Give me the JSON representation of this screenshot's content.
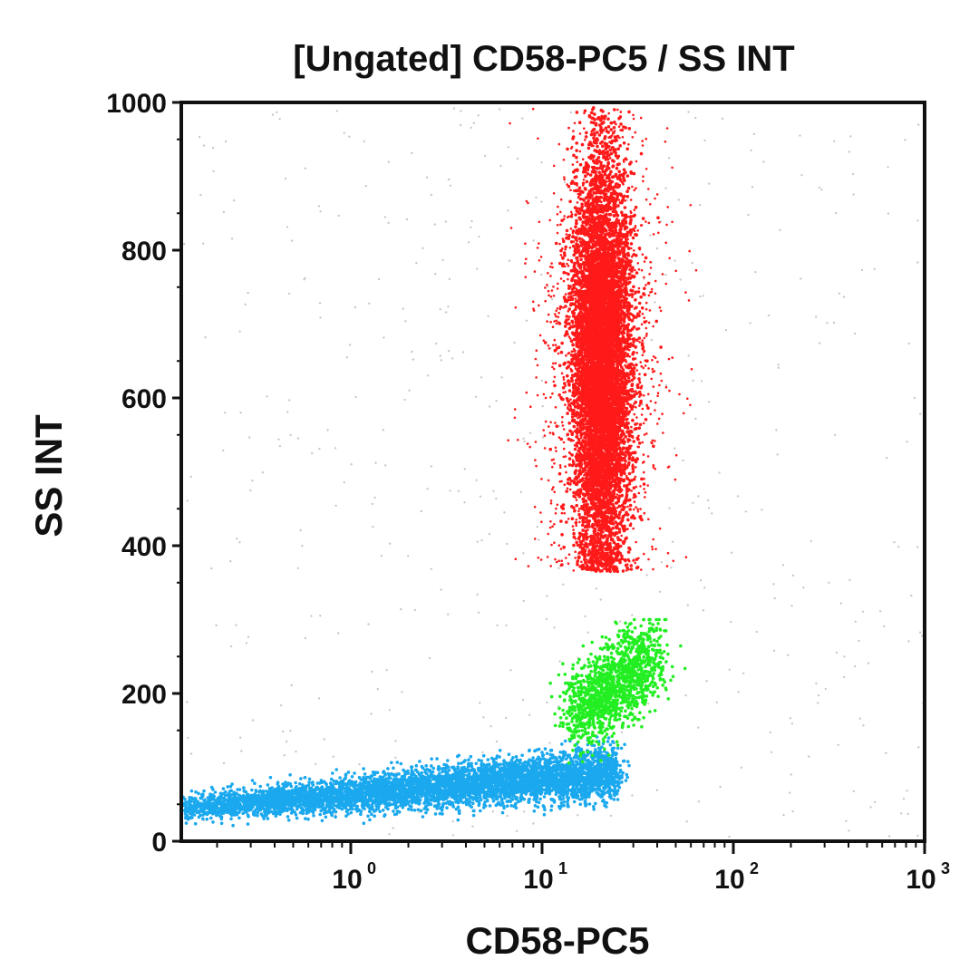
{
  "chart_data": {
    "type": "scatter",
    "title": "[Ungated] CD58-PC5 / SS INT",
    "xlabel": "CD58-PC5",
    "ylabel": "SS INT",
    "xscale": "log",
    "xlim": [
      0.13,
      1000
    ],
    "ylim": [
      0,
      1000
    ],
    "yticks": [
      {
        "value": 0,
        "label": "0"
      },
      {
        "value": 200,
        "label": "200"
      },
      {
        "value": 400,
        "label": "400"
      },
      {
        "value": 600,
        "label": "600"
      },
      {
        "value": 800,
        "label": "800"
      },
      {
        "value": 1000,
        "label": "1000"
      }
    ],
    "xticks": [
      {
        "value": 1,
        "base": "10",
        "exp": "0"
      },
      {
        "value": 10,
        "base": "10",
        "exp": "1"
      },
      {
        "value": 100,
        "base": "10",
        "exp": "2"
      },
      {
        "value": 1000,
        "base": "10",
        "exp": "3"
      }
    ],
    "grid": false,
    "legend": "none",
    "populations": [
      {
        "color": "#ff1a1a",
        "x_center": 20,
        "x_range": [
          6,
          45
        ],
        "y_range": [
          360,
          1000
        ],
        "y_peak": 650,
        "approx_events": 9000
      },
      {
        "color": "#22ee22",
        "x_center": 30,
        "x_range": [
          12,
          45
        ],
        "y_range": [
          140,
          300
        ],
        "approx_events": 1400
      },
      {
        "color": "#1aa8ee",
        "x_center": 4,
        "x_range": [
          0.13,
          25
        ],
        "y_range": [
          30,
          140
        ],
        "approx_events": 5500
      }
    ],
    "background_color": "#c8c8c8"
  }
}
